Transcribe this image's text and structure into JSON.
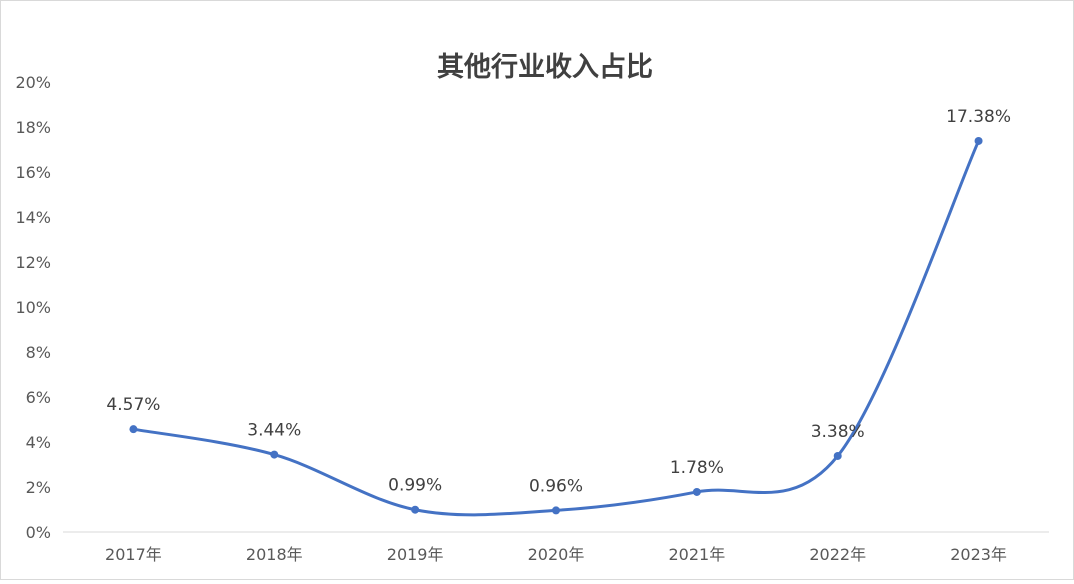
{
  "chart_data": {
    "type": "line",
    "title": "其他行业收入占比",
    "xlabel": "",
    "ylabel": "",
    "categories": [
      "2017年",
      "2018年",
      "2019年",
      "2020年",
      "2021年",
      "2022年",
      "2023年"
    ],
    "series": [
      {
        "values": [
          4.57,
          3.44,
          0.99,
          0.96,
          1.78,
          3.38,
          17.38
        ],
        "labels": [
          "4.57%",
          "3.44%",
          "0.99%",
          "0.96%",
          "1.78%",
          "3.38%",
          "17.38%"
        ]
      }
    ],
    "ylim": [
      0,
      20
    ],
    "y_ticks": [
      "0%",
      "2%",
      "4%",
      "6%",
      "8%",
      "10%",
      "12%",
      "14%",
      "16%",
      "18%",
      "20%"
    ],
    "smooth": true,
    "grid": false,
    "legend": "none",
    "colors": {
      "line": "#4472c4",
      "axis": "#d9d9d9"
    }
  }
}
